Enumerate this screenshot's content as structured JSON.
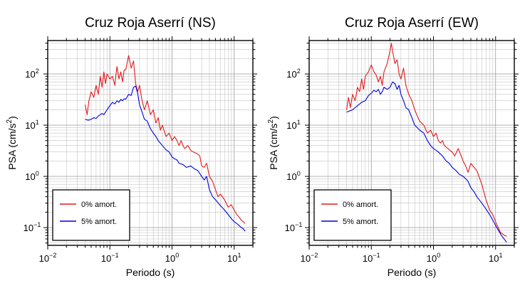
{
  "figure": {
    "background": "#ffffff"
  },
  "legend": {
    "items": [
      "0% amort.",
      "5% amort."
    ]
  },
  "chart_data": [
    {
      "type": "line",
      "title": "Cruz Roja Aserrí (NS)",
      "xlabel": "Periodo (s)",
      "ylabel_main": "PSA (cm/s",
      "ylabel_sup": "2",
      "ylabel_end": ")",
      "xscale": "log",
      "yscale": "log",
      "xlim": [
        0.01,
        20
      ],
      "ylim": [
        0.045,
        450
      ],
      "xticks": [
        {
          "v": 0.01,
          "b": "10",
          "e": "−2"
        },
        {
          "v": 0.1,
          "b": "10",
          "e": "−1"
        },
        {
          "v": 1,
          "b": "10",
          "e": "0"
        },
        {
          "v": 10,
          "b": "10",
          "e": "1"
        }
      ],
      "yticks": [
        {
          "v": 0.1,
          "b": "10",
          "e": "−1"
        },
        {
          "v": 1,
          "b": "10",
          "e": "0"
        },
        {
          "v": 10,
          "b": "10",
          "e": "1"
        },
        {
          "v": 100,
          "b": "10",
          "e": "2"
        }
      ],
      "grid": true,
      "legend_position": "bottom-left",
      "series": [
        {
          "name": "0% amort.",
          "color": "#e41a1c",
          "x": [
            0.04,
            0.043,
            0.046,
            0.05,
            0.055,
            0.06,
            0.065,
            0.07,
            0.075,
            0.08,
            0.085,
            0.09,
            0.1,
            0.11,
            0.12,
            0.13,
            0.14,
            0.15,
            0.16,
            0.17,
            0.18,
            0.2,
            0.22,
            0.24,
            0.26,
            0.28,
            0.3,
            0.33,
            0.36,
            0.4,
            0.45,
            0.5,
            0.55,
            0.6,
            0.65,
            0.7,
            0.8,
            0.9,
            1.0,
            1.1,
            1.2,
            1.3,
            1.4,
            1.5,
            1.6,
            1.8,
            2.0,
            2.2,
            2.5,
            2.8,
            3.0,
            3.3,
            3.6,
            4.0,
            4.5,
            5.0,
            5.5,
            6.0,
            7.0,
            8.0,
            9.0,
            10.0,
            11.0,
            12.0,
            13.0,
            14.0,
            15.0
          ],
          "y": [
            25,
            16,
            30,
            45,
            35,
            60,
            40,
            90,
            55,
            110,
            65,
            100,
            80,
            90,
            60,
            140,
            80,
            110,
            70,
            120,
            120,
            230,
            130,
            180,
            65,
            45,
            60,
            30,
            20,
            30,
            16,
            20,
            11,
            14,
            8,
            10,
            6,
            7,
            5,
            6,
            5,
            4,
            5,
            4,
            3.5,
            4,
            3.2,
            3,
            2.8,
            2.5,
            1.6,
            1.5,
            1.8,
            1,
            0.8,
            0.55,
            0.4,
            0.45,
            0.35,
            0.25,
            0.28,
            0.22,
            0.18,
            0.16,
            0.14,
            0.13,
            0.12
          ]
        },
        {
          "name": "5% amort.",
          "color": "#0000e6",
          "x": [
            0.04,
            0.045,
            0.05,
            0.055,
            0.06,
            0.065,
            0.07,
            0.075,
            0.08,
            0.09,
            0.1,
            0.11,
            0.12,
            0.13,
            0.14,
            0.15,
            0.16,
            0.17,
            0.18,
            0.2,
            0.22,
            0.24,
            0.26,
            0.28,
            0.3,
            0.33,
            0.36,
            0.4,
            0.45,
            0.5,
            0.55,
            0.6,
            0.7,
            0.8,
            0.9,
            1.0,
            1.1,
            1.2,
            1.3,
            1.5,
            1.7,
            2.0,
            2.3,
            2.6,
            3.0,
            3.3,
            3.6,
            4.0,
            4.5,
            5.0,
            6.0,
            7.0,
            8.0,
            9.0,
            10.0,
            11.0,
            12.0,
            13.0,
            14.0,
            15.0
          ],
          "y": [
            13,
            12.5,
            13,
            14,
            13.5,
            15,
            16,
            17,
            16,
            20,
            24,
            28,
            26,
            30,
            28,
            32,
            30,
            33,
            32,
            40,
            38,
            55,
            58,
            42,
            25,
            18,
            13,
            12,
            8.5,
            7,
            6,
            5,
            4,
            3.3,
            3,
            2.4,
            2.2,
            2.1,
            1.8,
            1.7,
            1.5,
            1.6,
            1.4,
            1.3,
            1.0,
            0.85,
            1.0,
            0.55,
            0.4,
            0.35,
            0.27,
            0.22,
            0.18,
            0.15,
            0.13,
            0.12,
            0.11,
            0.1,
            0.095,
            0.085
          ]
        }
      ]
    },
    {
      "type": "line",
      "title": "Cruz Roja Aserrí (EW)",
      "xlabel": "Periodo (s)",
      "ylabel_main": "PSA (cm/s",
      "ylabel_sup": "2",
      "ylabel_end": ")",
      "xscale": "log",
      "yscale": "log",
      "xlim": [
        0.01,
        20
      ],
      "ylim": [
        0.045,
        450
      ],
      "xticks": [
        {
          "v": 0.01,
          "b": "10",
          "e": "−2"
        },
        {
          "v": 0.1,
          "b": "10",
          "e": "−1"
        },
        {
          "v": 1,
          "b": "10",
          "e": "0"
        },
        {
          "v": 10,
          "b": "10",
          "e": "1"
        }
      ],
      "yticks": [
        {
          "v": 0.1,
          "b": "10",
          "e": "−1"
        },
        {
          "v": 1,
          "b": "10",
          "e": "0"
        },
        {
          "v": 10,
          "b": "10",
          "e": "1"
        },
        {
          "v": 100,
          "b": "10",
          "e": "2"
        }
      ],
      "grid": true,
      "legend_position": "bottom-left",
      "series": [
        {
          "name": "0% amort.",
          "color": "#e41a1c",
          "x": [
            0.04,
            0.043,
            0.046,
            0.05,
            0.055,
            0.06,
            0.065,
            0.07,
            0.075,
            0.08,
            0.09,
            0.1,
            0.11,
            0.12,
            0.13,
            0.14,
            0.15,
            0.16,
            0.18,
            0.2,
            0.21,
            0.22,
            0.24,
            0.26,
            0.28,
            0.3,
            0.33,
            0.36,
            0.4,
            0.45,
            0.5,
            0.55,
            0.6,
            0.7,
            0.8,
            0.9,
            1.0,
            1.1,
            1.2,
            1.3,
            1.4,
            1.5,
            1.7,
            2.0,
            2.2,
            2.5,
            2.8,
            3.0,
            3.3,
            3.6,
            4.0,
            4.5,
            5.0,
            6.0,
            7.0,
            8.0,
            9.0,
            10.0,
            11.0,
            12.0,
            13.0,
            14.0,
            15.0
          ],
          "y": [
            20,
            35,
            22,
            40,
            30,
            55,
            45,
            80,
            50,
            90,
            110,
            150,
            110,
            95,
            70,
            90,
            60,
            110,
            160,
            280,
            400,
            280,
            160,
            190,
            100,
            80,
            130,
            60,
            40,
            30,
            20,
            15,
            12,
            10,
            7,
            8,
            6,
            7,
            5,
            4.5,
            5,
            4,
            3.5,
            3,
            2.5,
            3.5,
            2.5,
            2,
            1.6,
            1.2,
            1.8,
            1.5,
            1.3,
            0.7,
            0.35,
            0.22,
            0.18,
            0.13,
            0.1,
            0.08,
            0.075,
            0.07,
            0.068
          ]
        },
        {
          "name": "5% amort.",
          "color": "#0000e6",
          "x": [
            0.04,
            0.045,
            0.05,
            0.055,
            0.06,
            0.065,
            0.07,
            0.075,
            0.08,
            0.09,
            0.1,
            0.11,
            0.12,
            0.13,
            0.14,
            0.15,
            0.16,
            0.18,
            0.2,
            0.22,
            0.24,
            0.26,
            0.28,
            0.3,
            0.33,
            0.36,
            0.4,
            0.45,
            0.5,
            0.6,
            0.7,
            0.8,
            0.9,
            1.0,
            1.2,
            1.4,
            1.6,
            1.8,
            2.0,
            2.3,
            2.6,
            3.0,
            3.3,
            3.6,
            4.0,
            4.5,
            5.0,
            6.0,
            7.0,
            8.0,
            9.0,
            10.0,
            11.0,
            12.0,
            13.0,
            14.0,
            15.0
          ],
          "y": [
            18,
            19,
            20,
            22,
            24,
            26,
            28,
            29,
            30,
            38,
            42,
            48,
            45,
            50,
            40,
            45,
            55,
            50,
            55,
            70,
            65,
            50,
            60,
            40,
            30,
            22,
            20,
            14,
            10,
            8,
            7,
            5,
            4,
            3.5,
            3,
            2.5,
            2,
            1.8,
            1.5,
            1.3,
            1.1,
            1.0,
            0.9,
            0.8,
            0.6,
            0.5,
            0.4,
            0.3,
            0.23,
            0.18,
            0.14,
            0.11,
            0.09,
            0.075,
            0.065,
            0.058,
            0.052
          ]
        }
      ]
    }
  ]
}
